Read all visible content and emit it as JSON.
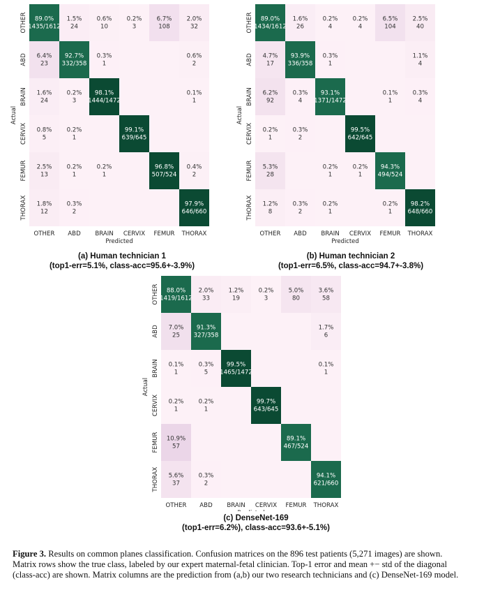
{
  "classes": [
    "OTHER",
    "ABD",
    "BRAIN",
    "CERVIX",
    "FEMUR",
    "THORAX"
  ],
  "axis": {
    "xlabel": "Predicted",
    "ylabel": "Actual"
  },
  "panels": [
    {
      "id": "a",
      "title": "(a) Human technician 1",
      "subtitle": "(top1-err=5.1%, class-acc=95.6+-3.9%)"
    },
    {
      "id": "b",
      "title": "(b) Human technician 2",
      "subtitle": "(top1-err=6.5%, class-acc=94.7+-3.8%)"
    },
    {
      "id": "c",
      "title": "(c) DenseNet-169",
      "subtitle": "(top1-err=6.2%), class-acc=93.6+-5.1%)"
    }
  ],
  "caption": {
    "label": "Figure 3.",
    "text": "Results on common planes classification. Confusion matrices on the 896 test patients (5,271 images) are shown. Matrix rows show the true class, labeled by our expert maternal-fetal clinician. Top-1 error and mean +− std of the diagonal (class-acc) are shown. Matrix columns are the prediction from (a,b) our two research technicians and (c) DenseNet-169 model."
  },
  "colors": {
    "low": "#fdf1f7",
    "high": "#0b4a33",
    "text_dark": "#333333",
    "text_light": "#ffffff"
  },
  "chart_data": [
    {
      "type": "heatmap",
      "title": "(a) Human technician 1",
      "xlabel": "Predicted",
      "ylabel": "Actual",
      "x": [
        "OTHER",
        "ABD",
        "BRAIN",
        "CERVIX",
        "FEMUR",
        "THORAX"
      ],
      "y": [
        "OTHER",
        "ABD",
        "BRAIN",
        "CERVIX",
        "FEMUR",
        "THORAX"
      ],
      "cells": [
        [
          {
            "pct": "89.0%",
            "cnt": "1435/1612"
          },
          {
            "pct": "1.5%",
            "cnt": "24"
          },
          {
            "pct": "0.6%",
            "cnt": "10"
          },
          {
            "pct": "0.2%",
            "cnt": "3"
          },
          {
            "pct": "6.7%",
            "cnt": "108"
          },
          {
            "pct": "2.0%",
            "cnt": "32"
          }
        ],
        [
          {
            "pct": "6.4%",
            "cnt": "23"
          },
          {
            "pct": "92.7%",
            "cnt": "332/358"
          },
          {
            "pct": "0.3%",
            "cnt": "1"
          },
          null,
          null,
          {
            "pct": "0.6%",
            "cnt": "2"
          }
        ],
        [
          {
            "pct": "1.6%",
            "cnt": "24"
          },
          {
            "pct": "0.2%",
            "cnt": "3"
          },
          {
            "pct": "98.1%",
            "cnt": "1444/1472"
          },
          null,
          null,
          {
            "pct": "0.1%",
            "cnt": "1"
          }
        ],
        [
          {
            "pct": "0.8%",
            "cnt": "5"
          },
          {
            "pct": "0.2%",
            "cnt": "1"
          },
          null,
          {
            "pct": "99.1%",
            "cnt": "639/645"
          },
          null,
          null
        ],
        [
          {
            "pct": "2.5%",
            "cnt": "13"
          },
          {
            "pct": "0.2%",
            "cnt": "1"
          },
          {
            "pct": "0.2%",
            "cnt": "1"
          },
          null,
          {
            "pct": "96.8%",
            "cnt": "507/524"
          },
          {
            "pct": "0.4%",
            "cnt": "2"
          }
        ],
        [
          {
            "pct": "1.8%",
            "cnt": "12"
          },
          {
            "pct": "0.3%",
            "cnt": "2"
          },
          null,
          null,
          null,
          {
            "pct": "97.9%",
            "cnt": "646/660"
          }
        ]
      ]
    },
    {
      "type": "heatmap",
      "title": "(b) Human technician 2",
      "xlabel": "Predicted",
      "ylabel": "Actual",
      "x": [
        "OTHER",
        "ABD",
        "BRAIN",
        "CERVIX",
        "FEMUR",
        "THORAX"
      ],
      "y": [
        "OTHER",
        "ABD",
        "BRAIN",
        "CERVIX",
        "FEMUR",
        "THORAX"
      ],
      "cells": [
        [
          {
            "pct": "89.0%",
            "cnt": "1434/1612"
          },
          {
            "pct": "1.6%",
            "cnt": "26"
          },
          {
            "pct": "0.2%",
            "cnt": "4"
          },
          {
            "pct": "0.2%",
            "cnt": "4"
          },
          {
            "pct": "6.5%",
            "cnt": "104"
          },
          {
            "pct": "2.5%",
            "cnt": "40"
          }
        ],
        [
          {
            "pct": "4.7%",
            "cnt": "17"
          },
          {
            "pct": "93.9%",
            "cnt": "336/358"
          },
          {
            "pct": "0.3%",
            "cnt": "1"
          },
          null,
          null,
          {
            "pct": "1.1%",
            "cnt": "4"
          }
        ],
        [
          {
            "pct": "6.2%",
            "cnt": "92"
          },
          {
            "pct": "0.3%",
            "cnt": "4"
          },
          {
            "pct": "93.1%",
            "cnt": "1371/1472"
          },
          null,
          {
            "pct": "0.1%",
            "cnt": "1"
          },
          {
            "pct": "0.3%",
            "cnt": "4"
          }
        ],
        [
          {
            "pct": "0.2%",
            "cnt": "1"
          },
          {
            "pct": "0.3%",
            "cnt": "2"
          },
          null,
          {
            "pct": "99.5%",
            "cnt": "642/645"
          },
          null,
          null
        ],
        [
          {
            "pct": "5.3%",
            "cnt": "28"
          },
          null,
          {
            "pct": "0.2%",
            "cnt": "1"
          },
          {
            "pct": "0.2%",
            "cnt": "1"
          },
          {
            "pct": "94.3%",
            "cnt": "494/524"
          },
          null
        ],
        [
          {
            "pct": "1.2%",
            "cnt": "8"
          },
          {
            "pct": "0.3%",
            "cnt": "2"
          },
          {
            "pct": "0.2%",
            "cnt": "1"
          },
          null,
          {
            "pct": "0.2%",
            "cnt": "1"
          },
          {
            "pct": "98.2%",
            "cnt": "648/660"
          }
        ]
      ]
    },
    {
      "type": "heatmap",
      "title": "(c) DenseNet-169",
      "xlabel": "Predicted",
      "ylabel": "Actual",
      "x": [
        "OTHER",
        "ABD",
        "BRAIN",
        "CERVIX",
        "FEMUR",
        "THORAX"
      ],
      "y": [
        "OTHER",
        "ABD",
        "BRAIN",
        "CERVIX",
        "FEMUR",
        "THORAX"
      ],
      "cells": [
        [
          {
            "pct": "88.0%",
            "cnt": "1419/1612"
          },
          {
            "pct": "2.0%",
            "cnt": "33"
          },
          {
            "pct": "1.2%",
            "cnt": "19"
          },
          {
            "pct": "0.2%",
            "cnt": "3"
          },
          {
            "pct": "5.0%",
            "cnt": "80"
          },
          {
            "pct": "3.6%",
            "cnt": "58"
          }
        ],
        [
          {
            "pct": "7.0%",
            "cnt": "25"
          },
          {
            "pct": "91.3%",
            "cnt": "327/358"
          },
          null,
          null,
          null,
          {
            "pct": "1.7%",
            "cnt": "6"
          }
        ],
        [
          {
            "pct": "0.1%",
            "cnt": "1"
          },
          {
            "pct": "0.3%",
            "cnt": "5"
          },
          {
            "pct": "99.5%",
            "cnt": "1465/1472"
          },
          null,
          null,
          {
            "pct": "0.1%",
            "cnt": "1"
          }
        ],
        [
          {
            "pct": "0.2%",
            "cnt": "1"
          },
          {
            "pct": "0.2%",
            "cnt": "1"
          },
          null,
          {
            "pct": "99.7%",
            "cnt": "643/645"
          },
          null,
          null
        ],
        [
          {
            "pct": "10.9%",
            "cnt": "57"
          },
          null,
          null,
          null,
          {
            "pct": "89.1%",
            "cnt": "467/524"
          },
          null
        ],
        [
          {
            "pct": "5.6%",
            "cnt": "37"
          },
          {
            "pct": "0.3%",
            "cnt": "2"
          },
          null,
          null,
          null,
          {
            "pct": "94.1%",
            "cnt": "621/660"
          }
        ]
      ]
    }
  ]
}
